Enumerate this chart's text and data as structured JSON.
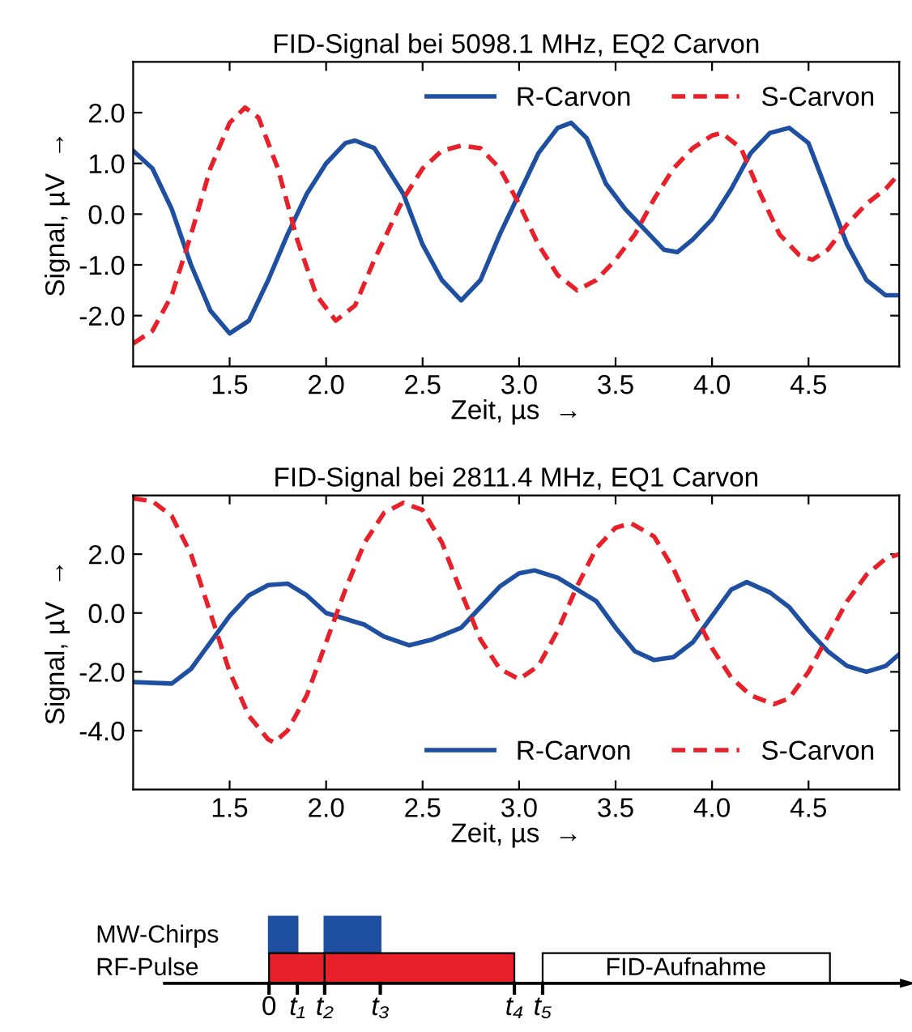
{
  "chart_data": [
    {
      "type": "line",
      "title": "FID-Signal bei 5098.1 MHz, EQ2 Carvon",
      "xlabel": "Zeit, µs  →",
      "ylabel": "Signal, µV  →",
      "xlim": [
        1.0,
        4.97
      ],
      "ylim": [
        -3.0,
        3.0
      ],
      "xticks": [
        {
          "value": 1.5,
          "label": "1.5"
        },
        {
          "value": 2,
          "label": "2.0"
        },
        {
          "value": 2.5,
          "label": "2.5"
        },
        {
          "value": 3,
          "label": "3.0"
        },
        {
          "value": 3.5,
          "label": "3.5"
        },
        {
          "value": 4,
          "label": "4.0"
        },
        {
          "value": 4.5,
          "label": "4.5"
        }
      ],
      "yticks": [
        {
          "value": -2,
          "label": "-2.0"
        },
        {
          "value": -1,
          "label": "-1.0"
        },
        {
          "value": 0,
          "label": "0.0"
        },
        {
          "value": 1,
          "label": "1.0"
        },
        {
          "value": 2,
          "label": "2.0"
        }
      ],
      "grid": false,
      "legend": "top right",
      "series": [
        {
          "name": "R-Carvon",
          "color": "#1f4fa0",
          "line_style": "solid",
          "x": [
            1.0,
            1.1,
            1.2,
            1.3,
            1.4,
            1.5,
            1.6,
            1.7,
            1.8,
            1.9,
            2.0,
            2.1,
            2.15,
            2.25,
            2.4,
            2.5,
            2.6,
            2.7,
            2.8,
            2.9,
            3.0,
            3.1,
            3.2,
            3.27,
            3.35,
            3.45,
            3.55,
            3.65,
            3.75,
            3.82,
            3.9,
            4.0,
            4.1,
            4.2,
            4.3,
            4.4,
            4.5,
            4.6,
            4.7,
            4.8,
            4.9,
            4.97
          ],
          "values": [
            1.25,
            0.9,
            0.1,
            -1.0,
            -1.9,
            -2.35,
            -2.1,
            -1.3,
            -0.4,
            0.4,
            1.0,
            1.4,
            1.45,
            1.3,
            0.4,
            -0.6,
            -1.3,
            -1.7,
            -1.3,
            -0.4,
            0.4,
            1.2,
            1.7,
            1.8,
            1.5,
            0.6,
            0.1,
            -0.3,
            -0.7,
            -0.75,
            -0.5,
            -0.1,
            0.5,
            1.2,
            1.6,
            1.7,
            1.4,
            0.4,
            -0.6,
            -1.3,
            -1.6,
            -1.6
          ]
        },
        {
          "name": "S-Carvon",
          "color": "#e8202a",
          "line_style": "dashed",
          "x": [
            1.0,
            1.1,
            1.2,
            1.3,
            1.4,
            1.5,
            1.58,
            1.65,
            1.75,
            1.85,
            1.95,
            2.05,
            2.15,
            2.25,
            2.4,
            2.5,
            2.6,
            2.7,
            2.8,
            2.9,
            3.0,
            3.1,
            3.2,
            3.3,
            3.4,
            3.5,
            3.6,
            3.7,
            3.8,
            3.9,
            4.0,
            4.05,
            4.15,
            4.25,
            4.35,
            4.45,
            4.52,
            4.6,
            4.7,
            4.8,
            4.9,
            4.97
          ],
          "values": [
            -2.55,
            -2.3,
            -1.6,
            -0.4,
            0.9,
            1.8,
            2.1,
            1.9,
            0.9,
            -0.5,
            -1.6,
            -2.1,
            -1.8,
            -0.9,
            0.3,
            0.9,
            1.25,
            1.35,
            1.3,
            0.9,
            0.2,
            -0.6,
            -1.2,
            -1.5,
            -1.3,
            -0.9,
            -0.4,
            0.3,
            0.9,
            1.3,
            1.55,
            1.6,
            1.3,
            0.4,
            -0.4,
            -0.8,
            -0.9,
            -0.7,
            -0.2,
            0.2,
            0.5,
            0.8
          ]
        }
      ]
    },
    {
      "type": "line",
      "title": "FID-Signal bei 2811.4 MHz, EQ1 Carvon",
      "xlabel": "Zeit, µs  →",
      "ylabel": "Signal, µV  →",
      "xlim": [
        1.0,
        4.97
      ],
      "ylim": [
        -6.0,
        4.0
      ],
      "xticks": [
        {
          "value": 1.5,
          "label": "1.5"
        },
        {
          "value": 2,
          "label": "2.0"
        },
        {
          "value": 2.5,
          "label": "2.5"
        },
        {
          "value": 3,
          "label": "3.0"
        },
        {
          "value": 3.5,
          "label": "3.5"
        },
        {
          "value": 4,
          "label": "4.0"
        },
        {
          "value": 4.5,
          "label": "4.5"
        }
      ],
      "yticks": [
        {
          "value": -4,
          "label": "-4.0"
        },
        {
          "value": -2,
          "label": "-2.0"
        },
        {
          "value": 0,
          "label": "0.0"
        },
        {
          "value": 2,
          "label": "2.0"
        }
      ],
      "grid": false,
      "legend": "bottom right",
      "series": [
        {
          "name": "R-Carvon",
          "color": "#1f4fa0",
          "line_style": "solid",
          "x": [
            1.0,
            1.2,
            1.3,
            1.4,
            1.5,
            1.6,
            1.7,
            1.8,
            1.9,
            2.0,
            2.1,
            2.2,
            2.3,
            2.43,
            2.55,
            2.7,
            2.8,
            2.9,
            3.0,
            3.08,
            3.2,
            3.3,
            3.4,
            3.5,
            3.6,
            3.7,
            3.8,
            3.9,
            4.0,
            4.1,
            4.18,
            4.3,
            4.4,
            4.5,
            4.6,
            4.7,
            4.8,
            4.9,
            4.97
          ],
          "values": [
            -2.35,
            -2.4,
            -1.9,
            -1.0,
            -0.1,
            0.6,
            0.95,
            1.0,
            0.6,
            0.0,
            -0.2,
            -0.4,
            -0.8,
            -1.1,
            -0.9,
            -0.5,
            0.2,
            0.9,
            1.35,
            1.45,
            1.2,
            0.8,
            0.4,
            -0.5,
            -1.3,
            -1.6,
            -1.5,
            -1.0,
            -0.1,
            0.8,
            1.05,
            0.7,
            0.2,
            -0.6,
            -1.3,
            -1.8,
            -2.0,
            -1.8,
            -1.4
          ]
        },
        {
          "name": "S-Carvon",
          "color": "#e8202a",
          "line_style": "dashed",
          "x": [
            1.0,
            1.1,
            1.2,
            1.3,
            1.4,
            1.5,
            1.6,
            1.7,
            1.73,
            1.8,
            1.9,
            2.0,
            2.1,
            2.2,
            2.3,
            2.4,
            2.5,
            2.6,
            2.7,
            2.8,
            2.9,
            3.0,
            3.1,
            3.2,
            3.3,
            3.4,
            3.5,
            3.58,
            3.7,
            3.8,
            3.9,
            4.0,
            4.1,
            4.2,
            4.32,
            4.4,
            4.5,
            4.6,
            4.7,
            4.8,
            4.9,
            4.97
          ],
          "values": [
            3.9,
            3.8,
            3.3,
            2.0,
            0.0,
            -2.0,
            -3.5,
            -4.3,
            -4.4,
            -4.0,
            -2.8,
            -1.0,
            0.8,
            2.4,
            3.4,
            3.75,
            3.5,
            2.4,
            0.7,
            -0.9,
            -1.9,
            -2.25,
            -1.8,
            -0.6,
            0.9,
            2.2,
            2.9,
            3.05,
            2.6,
            1.5,
            0.1,
            -1.2,
            -2.2,
            -2.8,
            -3.1,
            -2.9,
            -2.0,
            -0.8,
            0.4,
            1.3,
            1.85,
            2.0
          ]
        }
      ]
    },
    {
      "type": "other",
      "annotations": [
        "MW-Chirps",
        "RF-Pulse",
        "FID-Aufnahme",
        "0",
        "t₁",
        "t₂",
        "t₃",
        "t₄",
        "t₅"
      ]
    }
  ]
}
